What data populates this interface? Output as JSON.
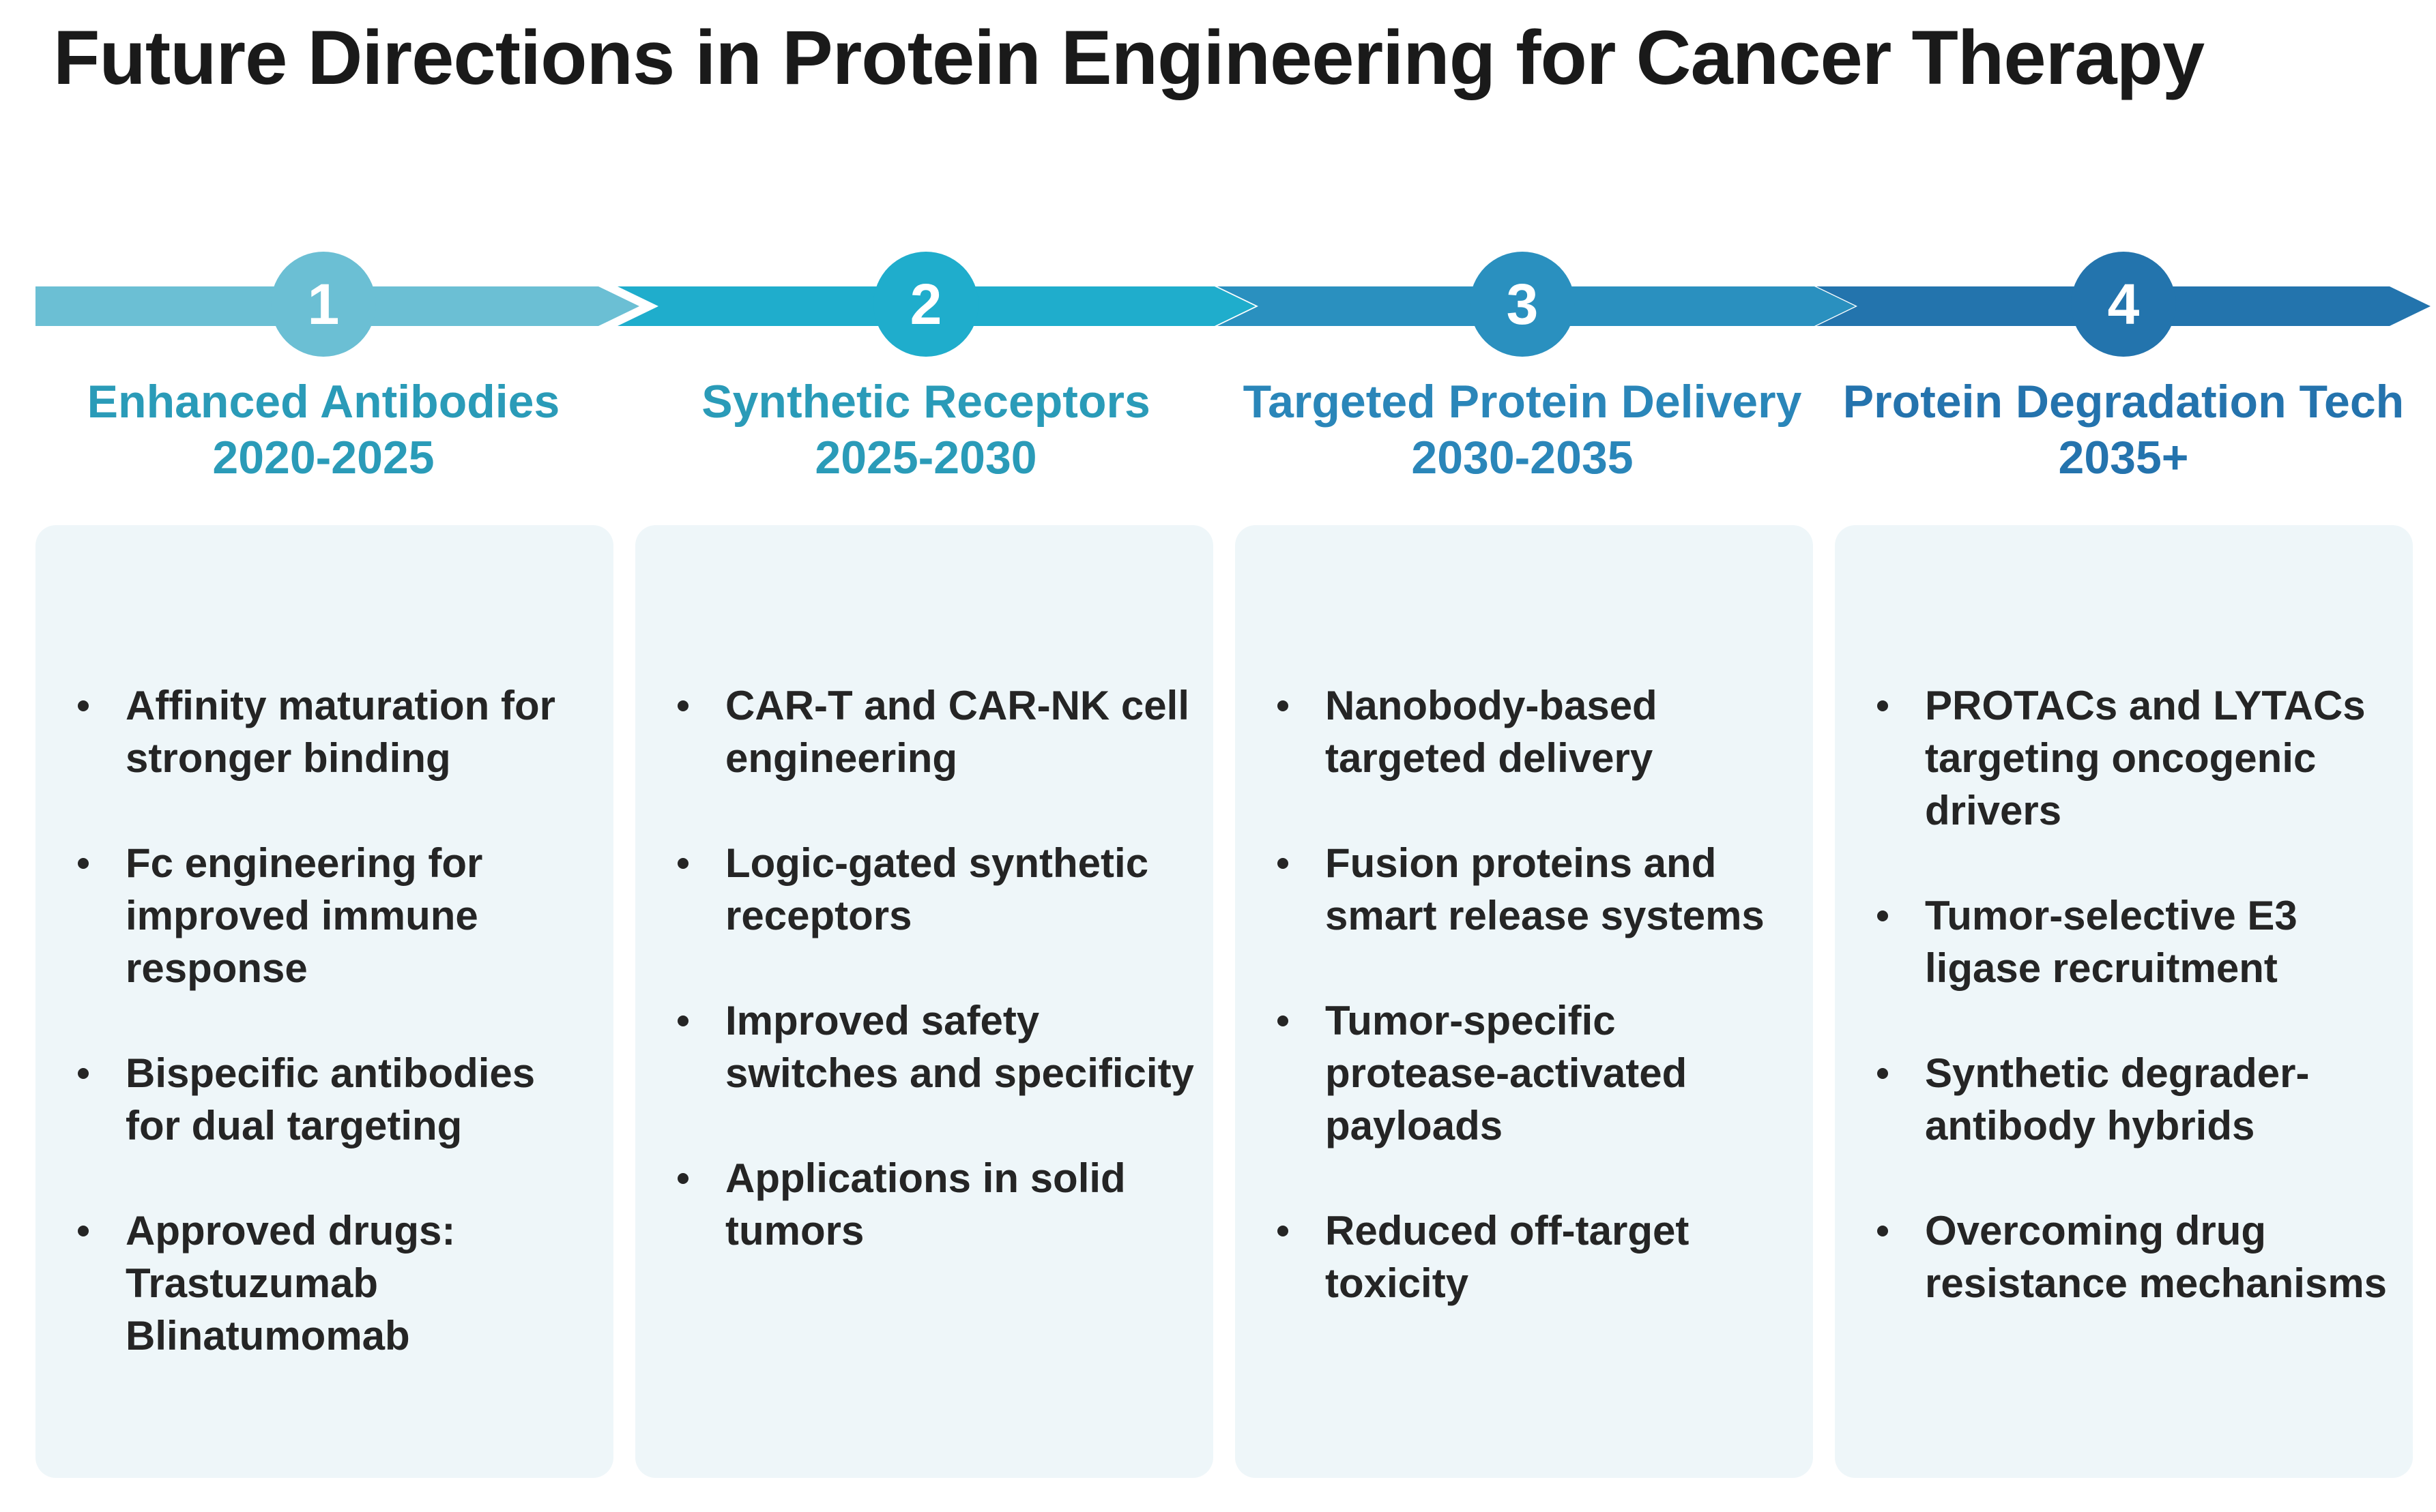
{
  "title": "Future Directions in Protein Engineering for Cancer Therapy",
  "phases": [
    {
      "number": "1",
      "name": "Enhanced Antibodies",
      "period": "2020-2025",
      "color": "#6bbfd4",
      "text_color": "#2a9bb8",
      "items": [
        "Affinity maturation for stronger binding",
        "Fc engineering for improved immune response",
        "Bispecific antibodies for dual targeting",
        "Approved drugs: Trastuzumab Blinatumomab"
      ]
    },
    {
      "number": "2",
      "name": "Synthetic Receptors",
      "period": "2025-2030",
      "color": "#1fadcc",
      "text_color": "#2a9bb8",
      "items": [
        "CAR-T and CAR-NK cell engineering",
        "Logic-gated synthetic receptors",
        "Improved safety switches and specificity",
        "Applications in solid tumors"
      ]
    },
    {
      "number": "3",
      "name": "Targeted Protein Delivery",
      "period": "2030-2035",
      "color": "#2a90bf",
      "text_color": "#2a86b9",
      "items": [
        "Nanobody-based targeted delivery",
        "Fusion proteins and smart release systems",
        "Tumor-specific protease-activated payloads",
        "Reduced off-target toxicity"
      ]
    },
    {
      "number": "4",
      "name": "Protein Degradation Tech",
      "period": "2035+",
      "color": "#2374ad",
      "text_color": "#2473ad",
      "items": [
        "PROTACs and LYTACs targeting oncogenic drivers",
        "Tumor-selective E3 ligase recruitment",
        "Synthetic degrader-antibody hybrids",
        "Overcoming drug resistance mechanisms"
      ]
    }
  ]
}
